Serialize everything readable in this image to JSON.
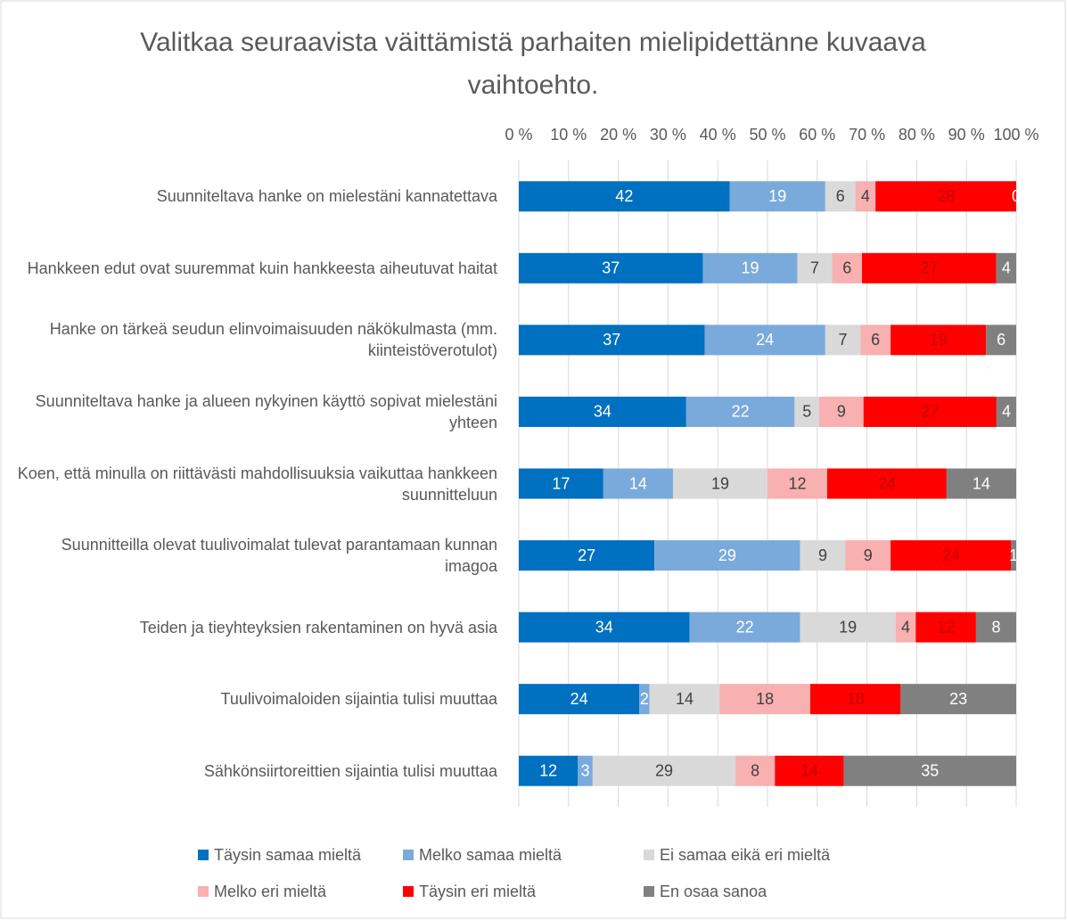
{
  "chart_data": {
    "type": "bar",
    "orientation": "horizontal",
    "stacked_percent": true,
    "title": "Valitkaa seuraavista väittämistä parhaiten mielipidettänne kuvaava vaihtoehto.",
    "categories": [
      "Suunniteltava hanke on mielestäni kannatettava",
      "Hankkeen edut ovat suuremmat kuin hankkeesta aiheutuvat haitat",
      "Hanke on tärkeä seudun elinvoimaisuuden näkökulmasta (mm. kiinteistöverotulot)",
      "Suunniteltava hanke ja alueen nykyinen käyttö sopivat mielestäni yhteen",
      "Koen, että minulla on riittävästi mahdollisuuksia vaikuttaa hankkeen suunnitteluun",
      "Suunnitteilla olevat tuulivoimalat tulevat parantamaan kunnan imagoa",
      "Teiden ja tieyhteyksien rakentaminen on hyvä asia",
      "Tuulivoimaloiden sijaintia tulisi muuttaa",
      "Sähkönsiirtoreittien sijaintia tulisi muuttaa"
    ],
    "series": [
      {
        "name": "Täysin samaa mieltä",
        "color": "#0070c0",
        "label_color": "#ffffff",
        "values": [
          42,
          37,
          37,
          34,
          17,
          27,
          34,
          24,
          12
        ]
      },
      {
        "name": "Melko samaa mieltä",
        "color": "#7aaadc",
        "label_color": "#ffffff",
        "values": [
          19,
          19,
          24,
          22,
          14,
          29,
          22,
          2,
          3
        ]
      },
      {
        "name": "Ei samaa eikä eri mieltä",
        "color": "#d9d9d9",
        "label_color": "#404040",
        "values": [
          6,
          7,
          7,
          5,
          19,
          9,
          19,
          14,
          29
        ]
      },
      {
        "name": "Melko eri mieltä",
        "color": "#f8b0b0",
        "label_color": "#404040",
        "values": [
          4,
          6,
          6,
          9,
          12,
          9,
          4,
          18,
          8
        ]
      },
      {
        "name": "Täysin eri mieltä",
        "color": "#ff0000",
        "label_color": "#c00000",
        "values": [
          28,
          27,
          19,
          27,
          24,
          24,
          12,
          18,
          14
        ]
      },
      {
        "name": "En osaa sanoa",
        "color": "#808080",
        "label_color": "#ffffff",
        "values": [
          0,
          4,
          6,
          4,
          14,
          1,
          8,
          23,
          35
        ]
      }
    ],
    "xlim": [
      0,
      100
    ],
    "xticks": [
      {
        "value": 0,
        "label": "0 %"
      },
      {
        "value": 10,
        "label": "10 %"
      },
      {
        "value": 20,
        "label": "20 %"
      },
      {
        "value": 30,
        "label": "30 %"
      },
      {
        "value": 40,
        "label": "40 %"
      },
      {
        "value": 50,
        "label": "50 %"
      },
      {
        "value": 60,
        "label": "60 %"
      },
      {
        "value": 70,
        "label": "70 %"
      },
      {
        "value": 80,
        "label": "80 %"
      },
      {
        "value": 90,
        "label": "90 %"
      },
      {
        "value": 100,
        "label": "100 %"
      }
    ],
    "grid": true,
    "legend": "bottom"
  }
}
